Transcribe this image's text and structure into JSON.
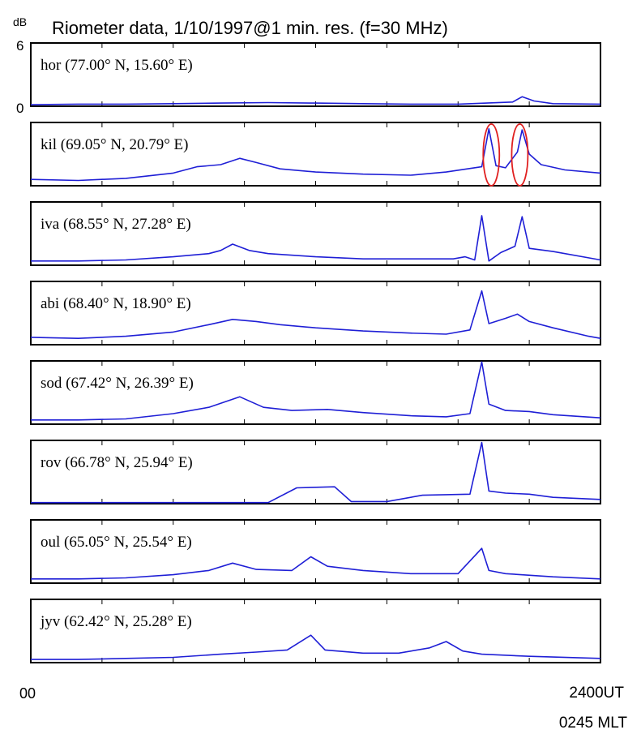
{
  "chart_data": {
    "type": "line",
    "title": "Riometer data, 1/10/1997@1 min. res. (f=30 MHz)",
    "ylabel": "dB",
    "y_ticks": [
      "6",
      "0"
    ],
    "ylim": [
      0,
      6
    ],
    "x_start_label": "00",
    "x_end_labels": [
      "2400UT",
      "0245 MLT"
    ],
    "xlim": [
      0,
      24
    ],
    "x_unit": "UT hour",
    "line_color": "#1f1fd6",
    "highlight_color": "#e02020",
    "highlights": [
      {
        "panel": 1,
        "x": 19.4,
        "note": "ellipse"
      },
      {
        "panel": 1,
        "x": 20.6,
        "note": "ellipse"
      }
    ],
    "series": [
      {
        "name": "hor (77.00° N, 15.60° E)",
        "points": [
          [
            0,
            0.15
          ],
          [
            2,
            0.2
          ],
          [
            4,
            0.2
          ],
          [
            6,
            0.25
          ],
          [
            8,
            0.3
          ],
          [
            10,
            0.35
          ],
          [
            12,
            0.3
          ],
          [
            14,
            0.25
          ],
          [
            16,
            0.2
          ],
          [
            18,
            0.2
          ],
          [
            19.2,
            0.3
          ],
          [
            20.3,
            0.4
          ],
          [
            20.7,
            0.9
          ],
          [
            21.2,
            0.5
          ],
          [
            22,
            0.25
          ],
          [
            24,
            0.2
          ]
        ]
      },
      {
        "name": "kil (69.05° N, 20.79° E)",
        "points": [
          [
            0,
            0.6
          ],
          [
            2,
            0.5
          ],
          [
            4,
            0.7
          ],
          [
            6,
            1.2
          ],
          [
            7,
            1.8
          ],
          [
            8,
            2.0
          ],
          [
            8.8,
            2.6
          ],
          [
            9.5,
            2.2
          ],
          [
            10.5,
            1.6
          ],
          [
            12,
            1.3
          ],
          [
            14,
            1.1
          ],
          [
            16,
            1.0
          ],
          [
            17.5,
            1.3
          ],
          [
            19.0,
            1.8
          ],
          [
            19.3,
            5.4
          ],
          [
            19.6,
            1.9
          ],
          [
            20.0,
            1.7
          ],
          [
            20.5,
            3.2
          ],
          [
            20.7,
            5.3
          ],
          [
            21.0,
            3.0
          ],
          [
            21.5,
            2.0
          ],
          [
            22.5,
            1.5
          ],
          [
            24,
            1.2
          ]
        ]
      },
      {
        "name": "iva (68.55° N, 27.28° E)",
        "points": [
          [
            0,
            0.4
          ],
          [
            2,
            0.4
          ],
          [
            4,
            0.5
          ],
          [
            6,
            0.8
          ],
          [
            7.5,
            1.1
          ],
          [
            8,
            1.4
          ],
          [
            8.5,
            2.0
          ],
          [
            9.2,
            1.4
          ],
          [
            10,
            1.1
          ],
          [
            12,
            0.8
          ],
          [
            14,
            0.6
          ],
          [
            16,
            0.6
          ],
          [
            17.8,
            0.6
          ],
          [
            18.3,
            0.8
          ],
          [
            18.7,
            0.5
          ],
          [
            19.0,
            4.7
          ],
          [
            19.3,
            0.4
          ],
          [
            19.8,
            1.2
          ],
          [
            20.4,
            1.8
          ],
          [
            20.7,
            4.6
          ],
          [
            21.0,
            1.6
          ],
          [
            22,
            1.3
          ],
          [
            24,
            0.5
          ]
        ]
      },
      {
        "name": "abi (68.40° N, 18.90° E)",
        "points": [
          [
            0,
            0.7
          ],
          [
            2,
            0.6
          ],
          [
            4,
            0.8
          ],
          [
            6,
            1.2
          ],
          [
            7.5,
            1.9
          ],
          [
            8.5,
            2.4
          ],
          [
            9.5,
            2.2
          ],
          [
            10.5,
            1.9
          ],
          [
            12,
            1.6
          ],
          [
            14,
            1.3
          ],
          [
            16,
            1.1
          ],
          [
            17.5,
            1.0
          ],
          [
            18.5,
            1.4
          ],
          [
            19.0,
            5.1
          ],
          [
            19.3,
            2.0
          ],
          [
            20.0,
            2.5
          ],
          [
            20.5,
            2.9
          ],
          [
            21.0,
            2.2
          ],
          [
            22,
            1.6
          ],
          [
            23.5,
            0.8
          ],
          [
            24,
            0.6
          ]
        ]
      },
      {
        "name": "sod (67.42° N, 26.39° E)",
        "points": [
          [
            0,
            0.4
          ],
          [
            2,
            0.4
          ],
          [
            4,
            0.5
          ],
          [
            6,
            1.0
          ],
          [
            7.5,
            1.6
          ],
          [
            8.8,
            2.6
          ],
          [
            9.8,
            1.6
          ],
          [
            11,
            1.3
          ],
          [
            12.5,
            1.4
          ],
          [
            14,
            1.1
          ],
          [
            16,
            0.8
          ],
          [
            17.5,
            0.7
          ],
          [
            18.5,
            1.0
          ],
          [
            19.0,
            5.9
          ],
          [
            19.3,
            1.9
          ],
          [
            20,
            1.3
          ],
          [
            21,
            1.2
          ],
          [
            22,
            0.9
          ],
          [
            24,
            0.6
          ]
        ]
      },
      {
        "name": "rov (66.78° N, 25.94° E)",
        "points": [
          [
            0,
            0.1
          ],
          [
            2,
            0.1
          ],
          [
            4,
            0.1
          ],
          [
            6,
            0.1
          ],
          [
            8,
            0.1
          ],
          [
            10,
            0.1
          ],
          [
            11.2,
            1.5
          ],
          [
            12.8,
            1.6
          ],
          [
            13.5,
            0.2
          ],
          [
            15,
            0.2
          ],
          [
            16.5,
            0.8
          ],
          [
            18.5,
            0.9
          ],
          [
            19.0,
            5.8
          ],
          [
            19.3,
            1.2
          ],
          [
            20,
            1.0
          ],
          [
            21,
            0.9
          ],
          [
            22,
            0.6
          ],
          [
            24,
            0.4
          ]
        ]
      },
      {
        "name": "oul (65.05° N, 25.54° E)",
        "points": [
          [
            0,
            0.4
          ],
          [
            2,
            0.4
          ],
          [
            4,
            0.5
          ],
          [
            6,
            0.8
          ],
          [
            7.5,
            1.2
          ],
          [
            8.5,
            1.9
          ],
          [
            9.5,
            1.3
          ],
          [
            11,
            1.2
          ],
          [
            11.8,
            2.5
          ],
          [
            12.5,
            1.6
          ],
          [
            14,
            1.2
          ],
          [
            16,
            0.9
          ],
          [
            18,
            0.9
          ],
          [
            19.0,
            3.3
          ],
          [
            19.3,
            1.2
          ],
          [
            20,
            0.9
          ],
          [
            22,
            0.6
          ],
          [
            24,
            0.4
          ]
        ]
      },
      {
        "name": "jyv (62.42° N, 25.28° E)",
        "points": [
          [
            0,
            0.3
          ],
          [
            2,
            0.3
          ],
          [
            4,
            0.4
          ],
          [
            6,
            0.5
          ],
          [
            8,
            0.8
          ],
          [
            9.5,
            1.0
          ],
          [
            10.8,
            1.2
          ],
          [
            11.8,
            2.6
          ],
          [
            12.4,
            1.2
          ],
          [
            14,
            0.9
          ],
          [
            15.5,
            0.9
          ],
          [
            16.8,
            1.4
          ],
          [
            17.5,
            2.0
          ],
          [
            18.2,
            1.1
          ],
          [
            19,
            0.8
          ],
          [
            21,
            0.6
          ],
          [
            24,
            0.4
          ]
        ]
      }
    ]
  }
}
